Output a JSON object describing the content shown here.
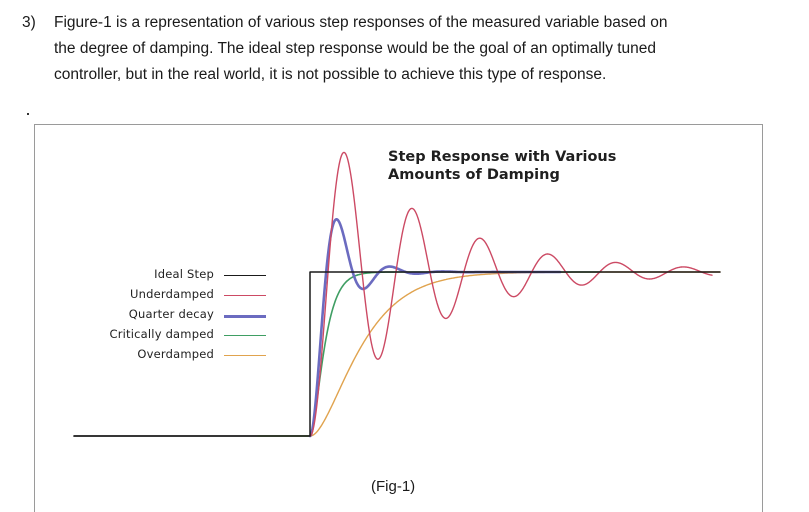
{
  "question": {
    "number": "3)",
    "line1": "Figure-1 is a representation of various step responses of the measured variable based on",
    "line2": "the degree of damping.  The ideal step response would be the goal of an optimally tuned",
    "line3": "controller, but in the real world, it is not possible to achieve this type of response."
  },
  "figure": {
    "caption": "(Fig-1)"
  },
  "chart_data": {
    "type": "line",
    "title_line1": "Step Response with Various",
    "title_line2": "Amounts of Damping",
    "xlabel": "",
    "ylabel": "",
    "grid": false,
    "axes": false,
    "legend_position": "left",
    "series": [
      {
        "name": "Ideal Step",
        "color": "#1a1a1a"
      },
      {
        "name": "Underdamped",
        "color": "#cc4a64"
      },
      {
        "name": "Quarter decay",
        "color": "#6b6bc0"
      },
      {
        "name": "Critically damped",
        "color": "#3f9e63"
      },
      {
        "name": "Overdamped",
        "color": "#e0a34e"
      }
    ]
  }
}
